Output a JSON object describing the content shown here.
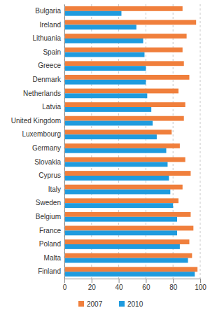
{
  "chart_data": {
    "type": "bar",
    "orientation": "horizontal",
    "grid": true,
    "legend": "bottom",
    "categories": [
      "Bulgaria",
      "Ireland",
      "Lithuania",
      "Spain",
      "Greece",
      "Denmark",
      "Netherlands",
      "Latvia",
      "United Kingdom",
      "Luxembourg",
      "Germany",
      "Slovakia",
      "Cyprus",
      "Italy",
      "Sweden",
      "Belgium",
      "France",
      "Poland",
      "Malta",
      "Finland"
    ],
    "series": [
      {
        "name": "2007",
        "color": "#f07f3c",
        "values": [
          87,
          97,
          90,
          87,
          88,
          92,
          84,
          89,
          88,
          79,
          85,
          89,
          93,
          87,
          84,
          93,
          95,
          92,
          94,
          98
        ]
      },
      {
        "name": "2010",
        "color": "#1f9bde",
        "values": [
          42,
          53,
          58,
          59,
          60,
          60,
          61,
          64,
          65,
          68,
          75,
          76,
          77,
          78,
          80,
          83,
          83,
          85,
          91,
          96
        ]
      }
    ],
    "xlim": [
      0,
      100
    ],
    "xticks": [
      0,
      20,
      40,
      60,
      80,
      100
    ]
  }
}
